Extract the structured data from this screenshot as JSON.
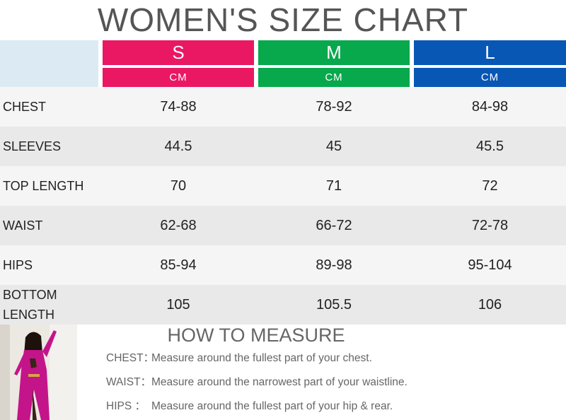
{
  "title": "WOMEN'S SIZE CHART",
  "colors": {
    "S": "#ea1863",
    "M": "#08a84d",
    "L": "#0857b5",
    "corner": "#dcebf3"
  },
  "sizes": [
    {
      "label": "S",
      "unit": "CM"
    },
    {
      "label": "M",
      "unit": "CM"
    },
    {
      "label": "L",
      "unit": "CM"
    }
  ],
  "rows": [
    {
      "label": "CHEST",
      "values": [
        "74-88",
        "78-92",
        "84-98"
      ]
    },
    {
      "label": "SLEEVES",
      "values": [
        "44.5",
        "45",
        "45.5"
      ]
    },
    {
      "label": "TOP LENGTH",
      "values": [
        "70",
        "71",
        "72"
      ]
    },
    {
      "label": "WAIST",
      "values": [
        "62-68",
        "66-72",
        "72-78"
      ]
    },
    {
      "label": "HIPS",
      "values": [
        "85-94",
        "89-98",
        "95-104"
      ]
    },
    {
      "label": "BOTTOM LENGTH",
      "values": [
        "105",
        "105.5",
        "106"
      ]
    }
  ],
  "measure": {
    "title": "HOW TO MEASURE",
    "items": [
      {
        "key": "CHEST：",
        "text": "Measure around the fullest part of your chest."
      },
      {
        "key": "WAIST：",
        "text": "Measure around the narrowest part of your waistline."
      },
      {
        "key": "HIPS ：",
        "text": "Measure around the fullest part of your hip & rear."
      }
    ]
  }
}
